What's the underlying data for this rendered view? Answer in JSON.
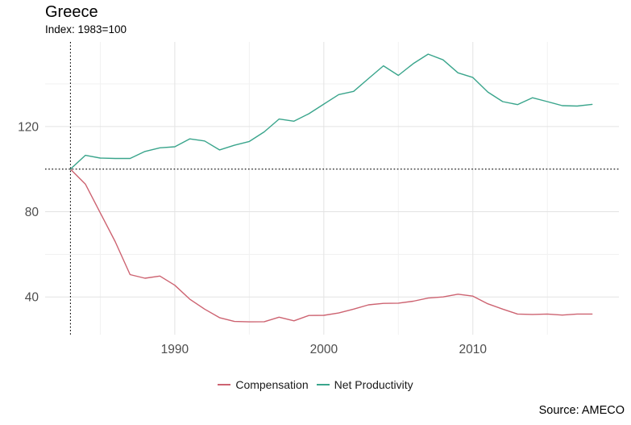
{
  "chart_data": {
    "type": "line",
    "title": "Greece",
    "subtitle": "Index: 1983=100",
    "source": "Source: AMECO",
    "xlabel": "",
    "ylabel": "",
    "x": [
      1983,
      1984,
      1985,
      1986,
      1987,
      1988,
      1989,
      1990,
      1991,
      1992,
      1993,
      1994,
      1995,
      1996,
      1997,
      1998,
      1999,
      2000,
      2001,
      2002,
      2003,
      2004,
      2005,
      2006,
      2007,
      2008,
      2009,
      2010,
      2011,
      2012,
      2013,
      2014,
      2015,
      2016,
      2017,
      2018
    ],
    "series": [
      {
        "name": "Compensation",
        "color": "#cd6371",
        "values": [
          100,
          93,
          79.5,
          66,
          50.5,
          48.8,
          49.8,
          45.5,
          39,
          34.3,
          30.3,
          28.5,
          28.3,
          28.4,
          30.5,
          28.8,
          31.3,
          31.4,
          32.5,
          34.3,
          36.3,
          37,
          37.1,
          38,
          39.5,
          40,
          41.3,
          40.4,
          36.8,
          34.3,
          32,
          31.8,
          32,
          31.5,
          32,
          32
        ]
      },
      {
        "name": "Net Productivity",
        "color": "#3aa58c",
        "values": [
          100,
          106.5,
          105.2,
          105,
          105,
          108.3,
          110,
          110.5,
          114.2,
          113.2,
          109,
          111.2,
          113,
          117.5,
          123.5,
          122.5,
          126,
          130.5,
          135,
          136.5,
          142.5,
          148.5,
          144,
          149.5,
          154,
          151.3,
          145.2,
          143,
          136.2,
          131.7,
          130.3,
          133.5,
          131.7,
          129.8,
          129.6,
          130.4
        ]
      }
    ],
    "x_ticks_major": [
      1990,
      2000,
      2010
    ],
    "x_gridlines_minor": [
      1985,
      1995,
      2005,
      2015
    ],
    "y_ticks_major": [
      40,
      80,
      120
    ],
    "y_gridlines_minor": [
      60,
      100,
      140
    ],
    "xlim": [
      1981.3,
      2019.8
    ],
    "ylim": [
      22.3,
      159.7
    ],
    "reference_lines": {
      "horizontal_at": 100,
      "vertical_at": 1983,
      "style": "dotted",
      "color": "#000000"
    },
    "grid": "on",
    "legend_position": "bottom",
    "colors": {
      "background": "#ffffff",
      "grid_major": "#e3e3e3",
      "grid_minor": "#f1f1f1",
      "axis_text": "#4d4d4d"
    }
  }
}
